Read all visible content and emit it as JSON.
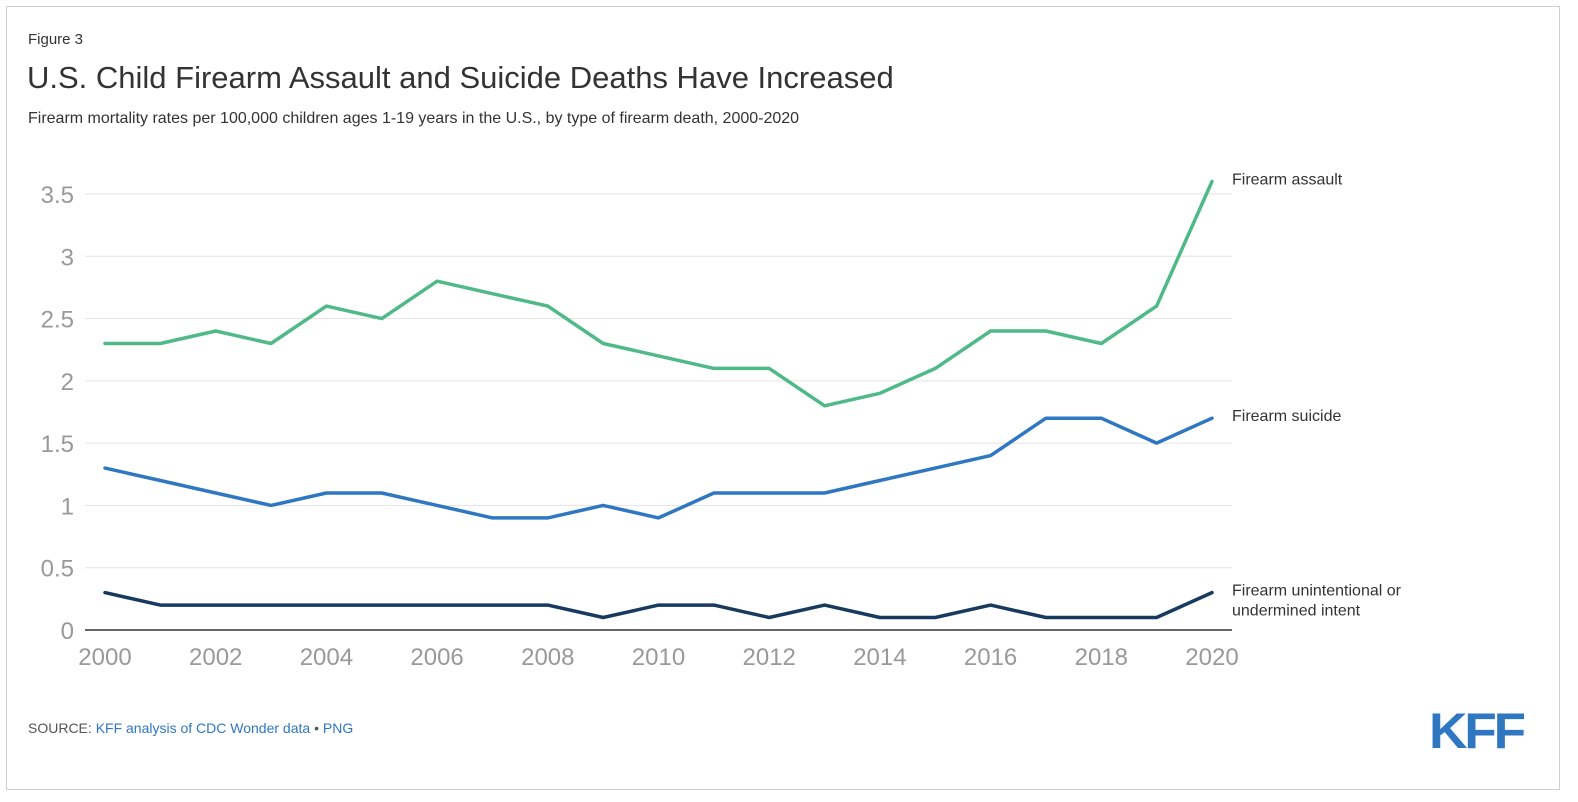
{
  "figure_label": "Figure 3",
  "title": "U.S. Child Firearm Assault and Suicide Deaths Have Increased",
  "subtitle": "Firearm mortality rates per 100,000 children ages 1-19 years in the U.S., by type of firearm death, 2000-2020",
  "source": {
    "prefix": "SOURCE: ",
    "link_text": "KFF analysis of CDC Wonder data",
    "separator": " • ",
    "png_text": "PNG"
  },
  "logo": {
    "text": "KFF",
    "color": "#2f77c1"
  },
  "chart_data": {
    "type": "line",
    "x": [
      2000,
      2001,
      2002,
      2003,
      2004,
      2005,
      2006,
      2007,
      2008,
      2009,
      2010,
      2011,
      2012,
      2013,
      2014,
      2015,
      2016,
      2017,
      2018,
      2019,
      2020
    ],
    "x_ticks": [
      "2000",
      "2002",
      "2004",
      "2006",
      "2008",
      "2010",
      "2012",
      "2014",
      "2016",
      "2018",
      "2020"
    ],
    "y_ticks": [
      "0",
      "0.5",
      "1",
      "1.5",
      "2",
      "2.5",
      "3",
      "3.5"
    ],
    "ylim": [
      0,
      3.5
    ],
    "xlim": [
      2000,
      2020
    ],
    "grid": true,
    "series": [
      {
        "name": "Firearm assault",
        "label_lines": [
          "Firearm assault"
        ],
        "color": "#4fb988",
        "values": [
          2.3,
          2.3,
          2.4,
          2.3,
          2.6,
          2.5,
          2.8,
          2.7,
          2.6,
          2.3,
          2.2,
          2.1,
          2.1,
          1.8,
          1.9,
          2.1,
          2.4,
          2.4,
          2.3,
          2.6,
          3.6
        ]
      },
      {
        "name": "Firearm suicide",
        "label_lines": [
          "Firearm suicide"
        ],
        "color": "#2f77c1",
        "values": [
          1.3,
          1.2,
          1.1,
          1.0,
          1.1,
          1.1,
          1.0,
          0.9,
          0.9,
          1.0,
          0.9,
          1.1,
          1.1,
          1.1,
          1.2,
          1.3,
          1.4,
          1.7,
          1.7,
          1.5,
          1.7
        ]
      },
      {
        "name": "Firearm unintentional or undermined intent",
        "label_lines": [
          "Firearm unintentional or",
          "undermined intent"
        ],
        "color": "#183a5e",
        "values": [
          0.3,
          0.2,
          0.2,
          0.2,
          0.2,
          0.2,
          0.2,
          0.2,
          0.2,
          0.1,
          0.2,
          0.2,
          0.1,
          0.2,
          0.1,
          0.1,
          0.2,
          0.1,
          0.1,
          0.1,
          0.3
        ]
      }
    ]
  }
}
